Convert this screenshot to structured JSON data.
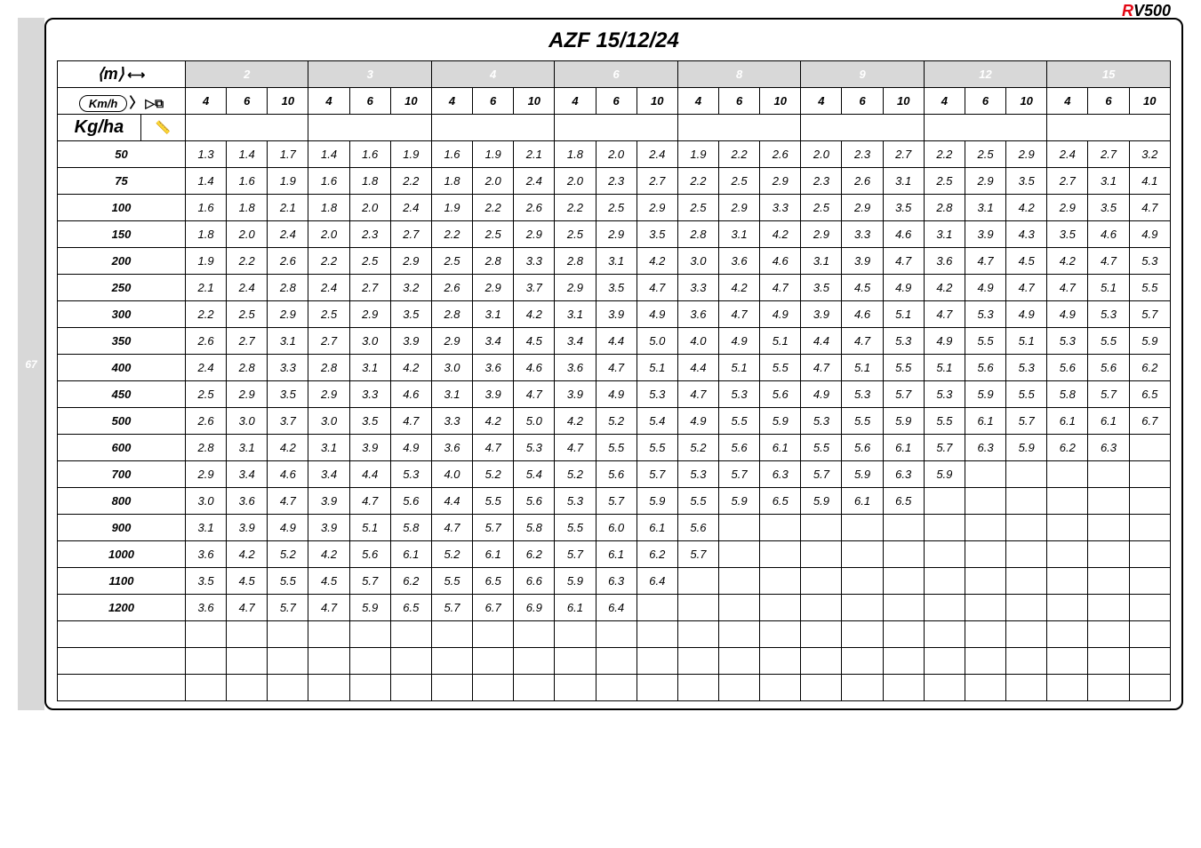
{
  "title": "AZF 15/12/24",
  "sidebar_number": "67",
  "logo": {
    "r": "R",
    "v": "V",
    "num": "500"
  },
  "header": {
    "m_icon": "⟨m⟩",
    "width_icon": "⟷",
    "kmh_label": "Km/h",
    "funnel_icon": "▷⧉",
    "kgha_label": "Kg/ha",
    "ruler_icon": "📏"
  },
  "groups": [
    "2",
    "3",
    "4",
    "6",
    "8",
    "9",
    "12",
    "15"
  ],
  "sub_headers": [
    "4",
    "6",
    "10"
  ],
  "rows": [
    {
      "label": "50",
      "values": [
        "1.3",
        "1.4",
        "1.7",
        "1.4",
        "1.6",
        "1.9",
        "1.6",
        "1.9",
        "2.1",
        "1.8",
        "2.0",
        "2.4",
        "1.9",
        "2.2",
        "2.6",
        "2.0",
        "2.3",
        "2.7",
        "2.2",
        "2.5",
        "2.9",
        "2.4",
        "2.7",
        "3.2"
      ]
    },
    {
      "label": "75",
      "values": [
        "1.4",
        "1.6",
        "1.9",
        "1.6",
        "1.8",
        "2.2",
        "1.8",
        "2.0",
        "2.4",
        "2.0",
        "2.3",
        "2.7",
        "2.2",
        "2.5",
        "2.9",
        "2.3",
        "2.6",
        "3.1",
        "2.5",
        "2.9",
        "3.5",
        "2.7",
        "3.1",
        "4.1"
      ]
    },
    {
      "label": "100",
      "values": [
        "1.6",
        "1.8",
        "2.1",
        "1.8",
        "2.0",
        "2.4",
        "1.9",
        "2.2",
        "2.6",
        "2.2",
        "2.5",
        "2.9",
        "2.5",
        "2.9",
        "3.3",
        "2.5",
        "2.9",
        "3.5",
        "2.8",
        "3.1",
        "4.2",
        "2.9",
        "3.5",
        "4.7"
      ]
    },
    {
      "label": "150",
      "values": [
        "1.8",
        "2.0",
        "2.4",
        "2.0",
        "2.3",
        "2.7",
        "2.2",
        "2.5",
        "2.9",
        "2.5",
        "2.9",
        "3.5",
        "2.8",
        "3.1",
        "4.2",
        "2.9",
        "3.3",
        "4.6",
        "3.1",
        "3.9",
        "4.3",
        "3.5",
        "4.6",
        "4.9"
      ]
    },
    {
      "label": "200",
      "values": [
        "1.9",
        "2.2",
        "2.6",
        "2.2",
        "2.5",
        "2.9",
        "2.5",
        "2.8",
        "3.3",
        "2.8",
        "3.1",
        "4.2",
        "3.0",
        "3.6",
        "4.6",
        "3.1",
        "3.9",
        "4.7",
        "3.6",
        "4.7",
        "4.5",
        "4.2",
        "4.7",
        "5.3"
      ]
    },
    {
      "label": "250",
      "values": [
        "2.1",
        "2.4",
        "2.8",
        "2.4",
        "2.7",
        "3.2",
        "2.6",
        "2.9",
        "3.7",
        "2.9",
        "3.5",
        "4.7",
        "3.3",
        "4.2",
        "4.7",
        "3.5",
        "4.5",
        "4.9",
        "4.2",
        "4.9",
        "4.7",
        "4.7",
        "5.1",
        "5.5"
      ]
    },
    {
      "label": "300",
      "values": [
        "2.2",
        "2.5",
        "2.9",
        "2.5",
        "2.9",
        "3.5",
        "2.8",
        "3.1",
        "4.2",
        "3.1",
        "3.9",
        "4.9",
        "3.6",
        "4.7",
        "4.9",
        "3.9",
        "4.6",
        "5.1",
        "4.7",
        "5.3",
        "4.9",
        "4.9",
        "5.3",
        "5.7"
      ]
    },
    {
      "label": "350",
      "values": [
        "2.6",
        "2.7",
        "3.1",
        "2.7",
        "3.0",
        "3.9",
        "2.9",
        "3.4",
        "4.5",
        "3.4",
        "4.4",
        "5.0",
        "4.0",
        "4.9",
        "5.1",
        "4.4",
        "4.7",
        "5.3",
        "4.9",
        "5.5",
        "5.1",
        "5.3",
        "5.5",
        "5.9"
      ]
    },
    {
      "label": "400",
      "values": [
        "2.4",
        "2.8",
        "3.3",
        "2.8",
        "3.1",
        "4.2",
        "3.0",
        "3.6",
        "4.6",
        "3.6",
        "4.7",
        "5.1",
        "4.4",
        "5.1",
        "5.5",
        "4.7",
        "5.1",
        "5.5",
        "5.1",
        "5.6",
        "5.3",
        "5.6",
        "5.6",
        "6.2"
      ]
    },
    {
      "label": "450",
      "values": [
        "2.5",
        "2.9",
        "3.5",
        "2.9",
        "3.3",
        "4.6",
        "3.1",
        "3.9",
        "4.7",
        "3.9",
        "4.9",
        "5.3",
        "4.7",
        "5.3",
        "5.6",
        "4.9",
        "5.3",
        "5.7",
        "5.3",
        "5.9",
        "5.5",
        "5.8",
        "5.7",
        "6.5"
      ]
    },
    {
      "label": "500",
      "values": [
        "2.6",
        "3.0",
        "3.7",
        "3.0",
        "3.5",
        "4.7",
        "3.3",
        "4.2",
        "5.0",
        "4.2",
        "5.2",
        "5.4",
        "4.9",
        "5.5",
        "5.9",
        "5.3",
        "5.5",
        "5.9",
        "5.5",
        "6.1",
        "5.7",
        "6.1",
        "6.1",
        "6.7"
      ]
    },
    {
      "label": "600",
      "values": [
        "2.8",
        "3.1",
        "4.2",
        "3.1",
        "3.9",
        "4.9",
        "3.6",
        "4.7",
        "5.3",
        "4.7",
        "5.5",
        "5.5",
        "5.2",
        "5.6",
        "6.1",
        "5.5",
        "5.6",
        "6.1",
        "5.7",
        "6.3",
        "5.9",
        "6.2",
        "6.3",
        ""
      ]
    },
    {
      "label": "700",
      "values": [
        "2.9",
        "3.4",
        "4.6",
        "3.4",
        "4.4",
        "5.3",
        "4.0",
        "5.2",
        "5.4",
        "5.2",
        "5.6",
        "5.7",
        "5.3",
        "5.7",
        "6.3",
        "5.7",
        "5.9",
        "6.3",
        "5.9",
        "",
        "",
        "",
        "",
        ""
      ]
    },
    {
      "label": "800",
      "values": [
        "3.0",
        "3.6",
        "4.7",
        "3.9",
        "4.7",
        "5.6",
        "4.4",
        "5.5",
        "5.6",
        "5.3",
        "5.7",
        "5.9",
        "5.5",
        "5.9",
        "6.5",
        "5.9",
        "6.1",
        "6.5",
        "",
        "",
        "",
        "",
        "",
        ""
      ]
    },
    {
      "label": "900",
      "values": [
        "3.1",
        "3.9",
        "4.9",
        "3.9",
        "5.1",
        "5.8",
        "4.7",
        "5.7",
        "5.8",
        "5.5",
        "6.0",
        "6.1",
        "5.6",
        "",
        "",
        "",
        "",
        "",
        "",
        "",
        "",
        "",
        "",
        ""
      ]
    },
    {
      "label": "1000",
      "values": [
        "3.6",
        "4.2",
        "5.2",
        "4.2",
        "5.6",
        "6.1",
        "5.2",
        "6.1",
        "6.2",
        "5.7",
        "6.1",
        "6.2",
        "5.7",
        "",
        "",
        "",
        "",
        "",
        "",
        "",
        "",
        "",
        "",
        ""
      ]
    },
    {
      "label": "1100",
      "values": [
        "3.5",
        "4.5",
        "5.5",
        "4.5",
        "5.7",
        "6.2",
        "5.5",
        "6.5",
        "6.6",
        "5.9",
        "6.3",
        "6.4",
        "",
        "",
        "",
        "",
        "",
        "",
        "",
        "",
        "",
        "",
        "",
        ""
      ]
    },
    {
      "label": "1200",
      "values": [
        "3.6",
        "4.7",
        "5.7",
        "4.7",
        "5.9",
        "6.5",
        "5.7",
        "6.7",
        "6.9",
        "6.1",
        "6.4",
        "",
        "",
        "",
        "",
        "",
        "",
        "",
        "",
        "",
        "",
        "",
        "",
        ""
      ]
    },
    {
      "label": "",
      "values": [
        "",
        "",
        "",
        "",
        "",
        "",
        "",
        "",
        "",
        "",
        "",
        "",
        "",
        "",
        "",
        "",
        "",
        "",
        "",
        "",
        "",
        "",
        "",
        ""
      ]
    },
    {
      "label": "",
      "values": [
        "",
        "",
        "",
        "",
        "",
        "",
        "",
        "",
        "",
        "",
        "",
        "",
        "",
        "",
        "",
        "",
        "",
        "",
        "",
        "",
        "",
        "",
        "",
        ""
      ]
    },
    {
      "label": "",
      "values": [
        "",
        "",
        "",
        "",
        "",
        "",
        "",
        "",
        "",
        "",
        "",
        "",
        "",
        "",
        "",
        "",
        "",
        "",
        "",
        "",
        "",
        "",
        "",
        ""
      ]
    }
  ]
}
